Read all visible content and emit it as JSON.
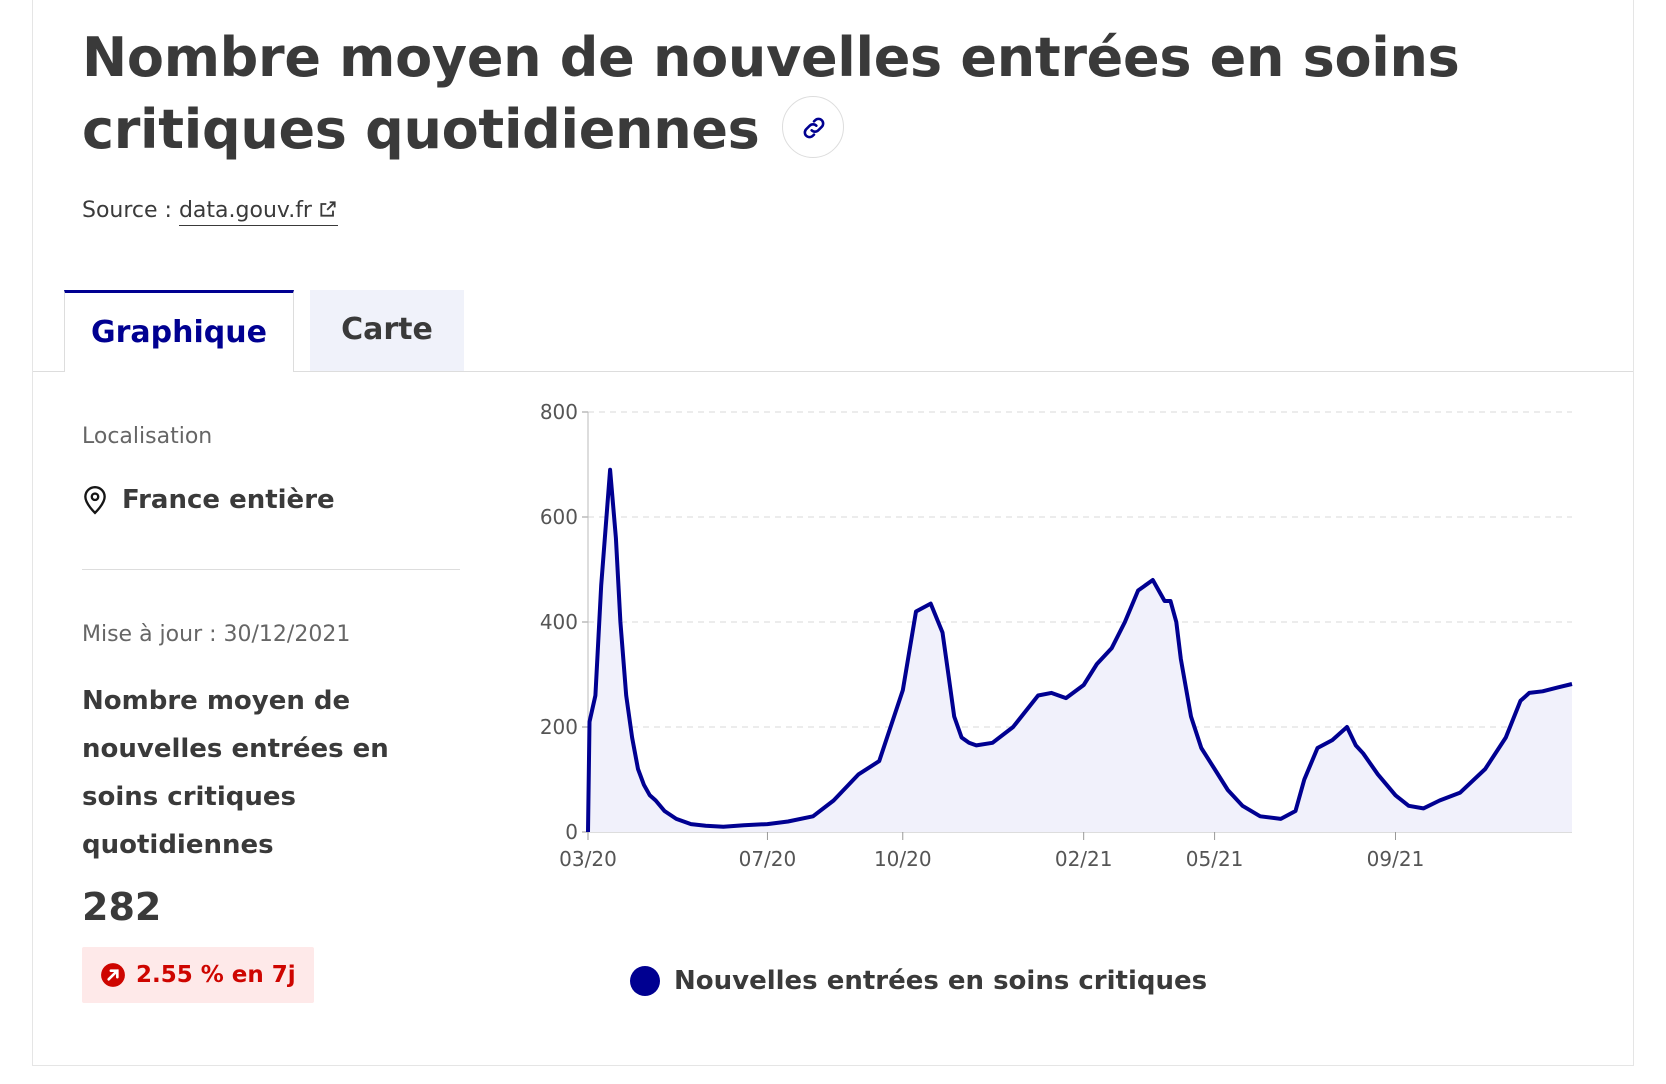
{
  "title": "Nombre moyen de nouvelles entrées en soins critiques quotidiennes",
  "source": {
    "label": "Source :",
    "link": "data.gouv.fr"
  },
  "tabs": [
    {
      "label": "Graphique",
      "active": true
    },
    {
      "label": "Carte",
      "active": false
    }
  ],
  "sidebar": {
    "location_label": "Localisation",
    "location_value": "France entière",
    "update": "Mise à jour : 30/12/2021",
    "kpi_title": "Nombre moyen de nouvelles entrées en soins critiques quotidiennes",
    "kpi_value": "282",
    "trend": "2.55 % en 7j"
  },
  "colors": {
    "accent": "#000091",
    "trend_bg": "#fee9e9",
    "trend_text": "#ce0500"
  },
  "icons": {
    "link": "link-icon",
    "external": "external-link-icon",
    "location": "location-pin-icon",
    "trend": "arrow-up-right-icon"
  },
  "chart_data": {
    "type": "area",
    "ylim": [
      0,
      800
    ],
    "yticks": [
      0,
      200,
      400,
      600,
      800
    ],
    "xticks": [
      "03/20",
      "07/20",
      "10/20",
      "02/21",
      "05/21",
      "09/21"
    ],
    "legend": "Nouvelles entrées en soins critiques",
    "series": [
      {
        "name": "Nouvelles entrées en soins critiques",
        "x": [
          "2020-03-01",
          "2020-03-02",
          "2020-03-06",
          "2020-03-10",
          "2020-03-16",
          "2020-03-20",
          "2020-03-23",
          "2020-03-27",
          "2020-03-31",
          "2020-04-04",
          "2020-04-08",
          "2020-04-12",
          "2020-04-16",
          "2020-04-22",
          "2020-04-30",
          "2020-05-10",
          "2020-05-20",
          "2020-06-01",
          "2020-06-15",
          "2020-07-01",
          "2020-07-15",
          "2020-08-01",
          "2020-08-15",
          "2020-09-01",
          "2020-09-15",
          "2020-10-01",
          "2020-10-10",
          "2020-10-20",
          "2020-10-28",
          "2020-11-01",
          "2020-11-05",
          "2020-11-10",
          "2020-11-15",
          "2020-11-20",
          "2020-12-01",
          "2020-12-15",
          "2021-01-01",
          "2021-01-10",
          "2021-01-20",
          "2021-02-01",
          "2021-02-10",
          "2021-02-20",
          "2021-03-01",
          "2021-03-10",
          "2021-03-20",
          "2021-03-28",
          "2021-04-01",
          "2021-04-05",
          "2021-04-08",
          "2021-04-15",
          "2021-04-22",
          "2021-05-01",
          "2021-05-10",
          "2021-05-20",
          "2021-06-01",
          "2021-06-15",
          "2021-06-25",
          "2021-07-01",
          "2021-07-10",
          "2021-07-20",
          "2021-07-30",
          "2021-08-05",
          "2021-08-10",
          "2021-08-20",
          "2021-09-01",
          "2021-09-10",
          "2021-09-20",
          "2021-10-01",
          "2021-10-15",
          "2021-11-01",
          "2021-11-15",
          "2021-11-25",
          "2021-12-01",
          "2021-12-10",
          "2021-12-20",
          "2021-12-30"
        ],
        "values": [
          0,
          210,
          260,
          470,
          690,
          560,
          400,
          260,
          180,
          120,
          90,
          70,
          60,
          40,
          25,
          15,
          12,
          10,
          13,
          15,
          20,
          30,
          60,
          110,
          135,
          270,
          420,
          435,
          380,
          300,
          220,
          180,
          170,
          165,
          170,
          200,
          260,
          265,
          255,
          280,
          320,
          350,
          400,
          460,
          480,
          440,
          440,
          400,
          330,
          220,
          160,
          120,
          80,
          50,
          30,
          25,
          40,
          100,
          160,
          175,
          200,
          165,
          150,
          110,
          70,
          50,
          45,
          60,
          75,
          120,
          180,
          250,
          265,
          268,
          275,
          282
        ]
      }
    ]
  }
}
